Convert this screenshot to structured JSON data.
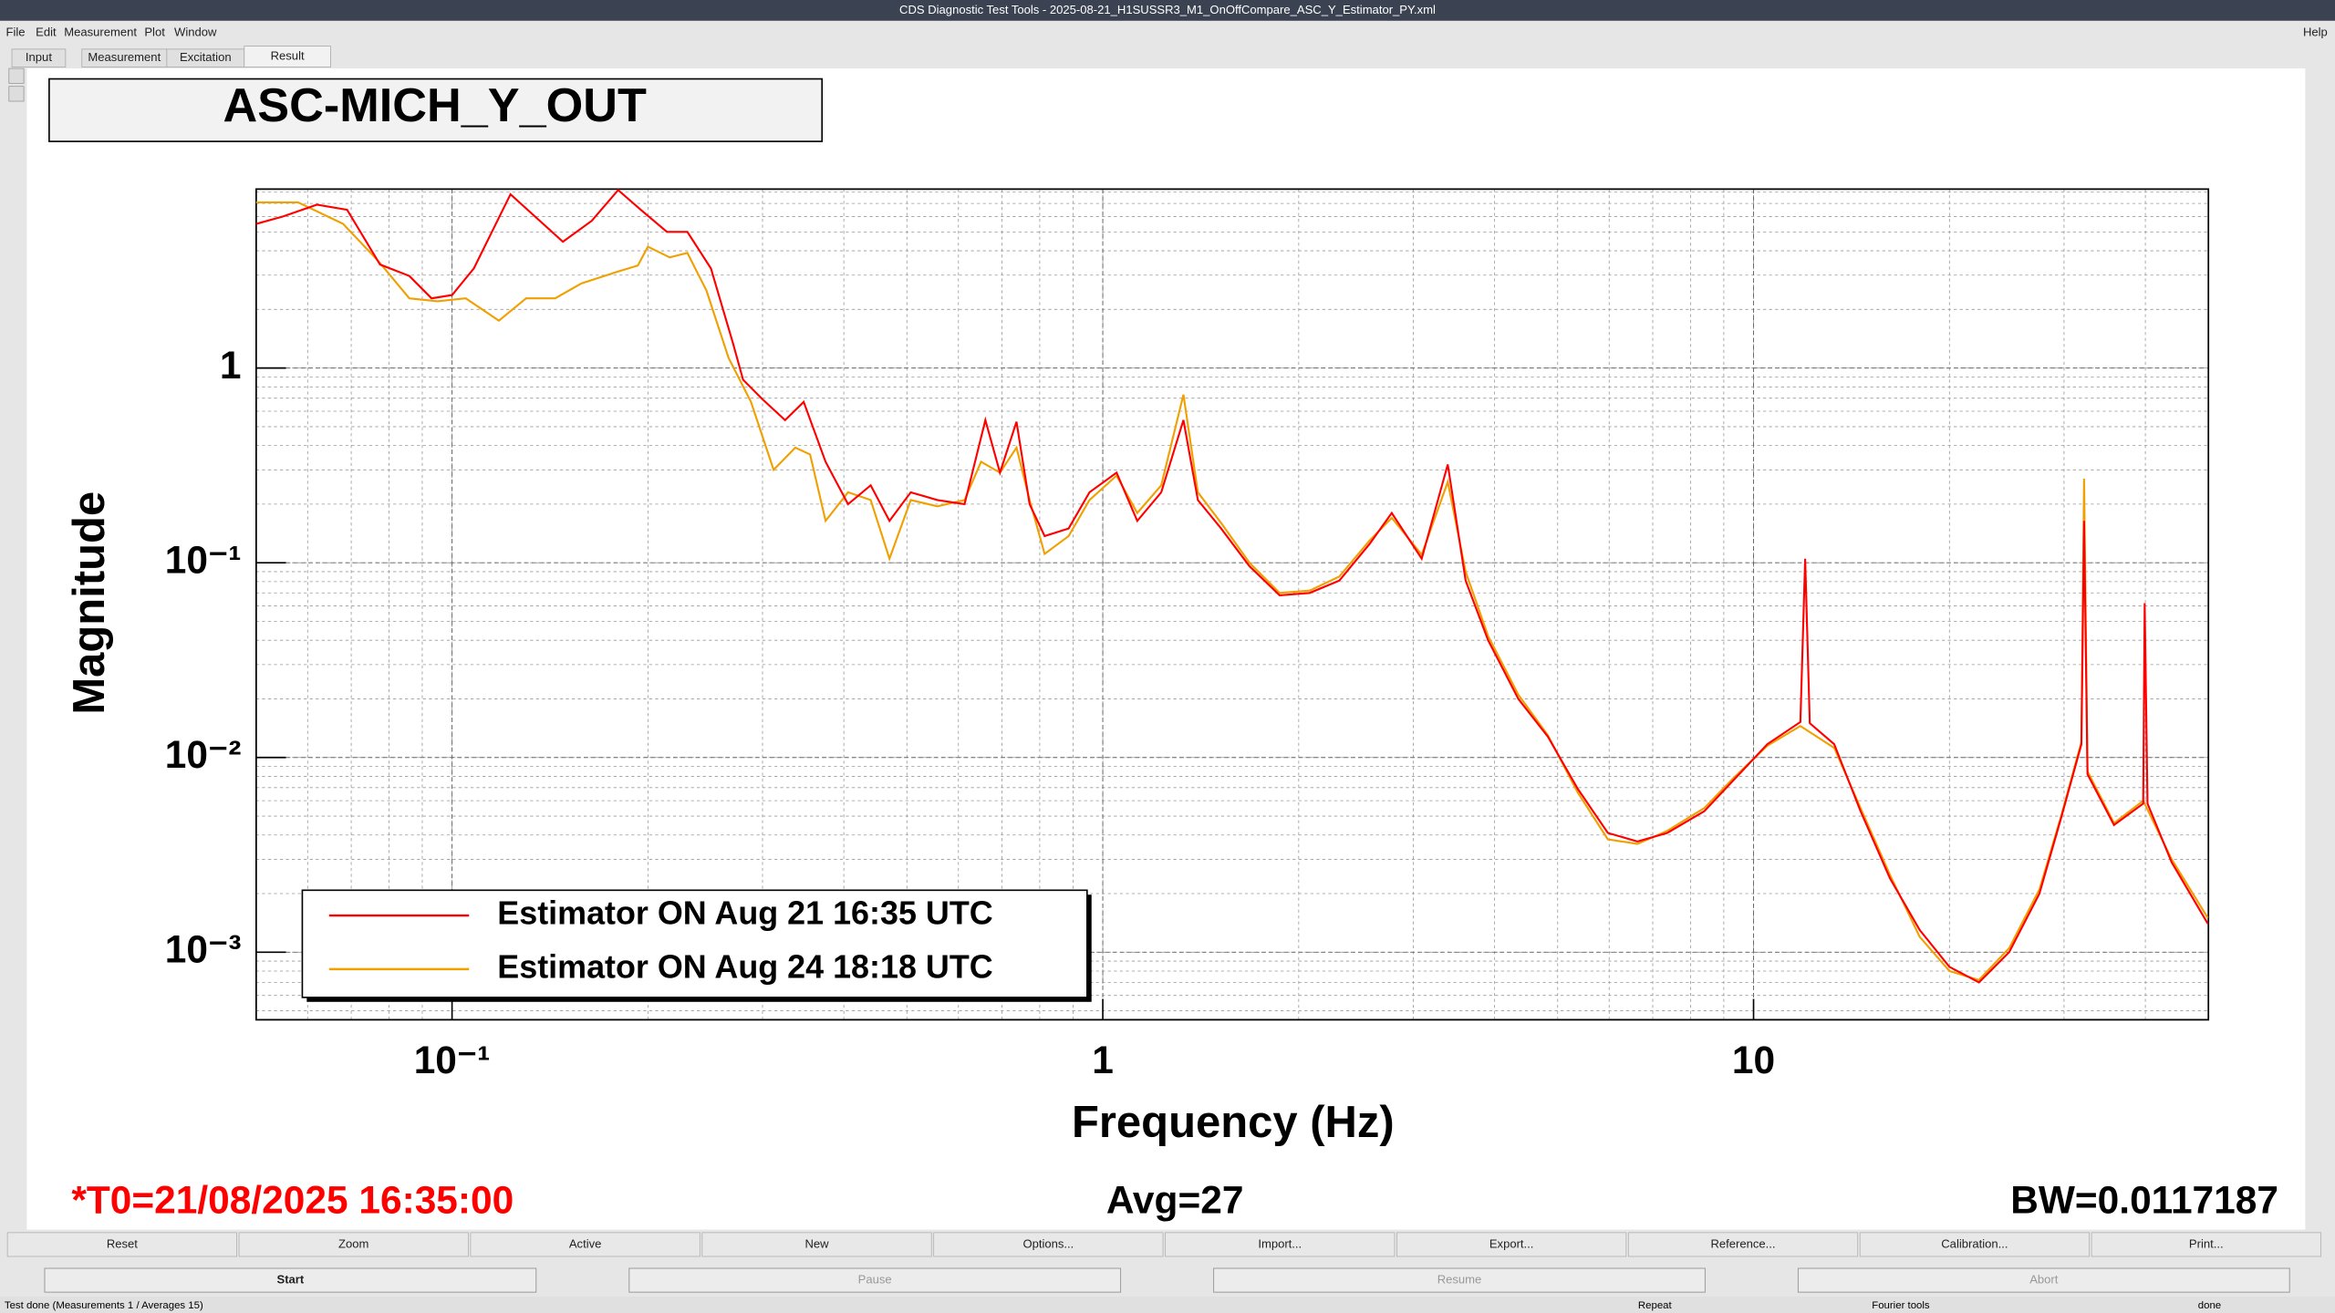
{
  "window": {
    "title": "CDS Diagnostic Test Tools - 2025-08-21_H1SUSSR3_M1_OnOffCompare_ASC_Y_Estimator_PY.xml",
    "menu": [
      "File",
      "Edit",
      "Measurement",
      "Plot",
      "Window"
    ],
    "help": "Help",
    "tabs": [
      "Input",
      "Measurement",
      "Excitation",
      "Result"
    ],
    "buttons": [
      "Reset",
      "Zoom",
      "Active",
      "New",
      "Options...",
      "Import...",
      "Export...",
      "Reference...",
      "Calibration...",
      "Print..."
    ],
    "controls": [
      "Start",
      "Pause",
      "Resume",
      "Abort"
    ],
    "status": [
      "Test done (Measurements 1 / Averages 15)",
      "Repeat",
      "Fourier tools",
      "done"
    ]
  },
  "chart_data": {
    "type": "line",
    "title": "ASC-MICH_Y_OUT",
    "x_label": "Frequency (Hz)",
    "y_label": "Magnitude",
    "xlog": true,
    "ylog": true,
    "grid": true,
    "minor_grid": true,
    "legend": "bottom left",
    "xlim": [
      0.05,
      50
    ],
    "ylim": [
      0.00045,
      8.3
    ],
    "xticks": [
      {
        "value": 0.1,
        "label": "10⁻¹"
      },
      1,
      10
    ],
    "yticks": [
      {
        "value": 0.001,
        "label": "10⁻³"
      },
      {
        "value": 0.01,
        "label": "10⁻²"
      },
      {
        "value": 0.1,
        "label": "10⁻¹"
      },
      1
    ],
    "series": [
      {
        "name": "Estimator ON Aug 21 16:35 UTC",
        "color": "#ff0000",
        "x": [
          0.05,
          0.055,
          0.062,
          0.069,
          0.0775,
          0.086,
          0.093,
          0.1,
          0.108,
          0.123,
          0.148,
          0.164,
          0.18,
          0.195,
          0.214,
          0.23,
          0.25,
          0.27,
          0.28,
          0.3,
          0.325,
          0.347,
          0.375,
          0.406,
          0.44,
          0.47,
          0.507,
          0.557,
          0.613,
          0.66,
          0.695,
          0.737,
          0.772,
          0.814,
          0.886,
          0.954,
          1.05,
          1.13,
          1.23,
          1.33,
          1.4,
          1.52,
          1.68,
          1.87,
          2.08,
          2.31,
          2.57,
          2.78,
          3.09,
          3.39,
          3.61,
          3.91,
          4.35,
          4.83,
          5.37,
          5.97,
          6.63,
          7.37,
          8.4,
          9.3,
          10.5,
          11.8,
          12.0,
          12.2,
          13.3,
          14.6,
          16.2,
          18.0,
          20.0,
          22.2,
          24.7,
          27.5,
          29.7,
          31.9,
          32.2,
          32.6,
          35.8,
          39.7,
          39.9,
          40.3,
          43.9,
          49.9
        ],
        "values": [
          5.5,
          6.0,
          6.9,
          6.5,
          3.4,
          2.97,
          2.28,
          2.37,
          3.25,
          7.8,
          4.45,
          5.7,
          8.2,
          6.5,
          5.0,
          5.0,
          3.25,
          1.35,
          0.87,
          0.69,
          0.54,
          0.67,
          0.33,
          0.2,
          0.25,
          0.164,
          0.23,
          0.21,
          0.2,
          0.54,
          0.29,
          0.53,
          0.2,
          0.137,
          0.15,
          0.23,
          0.29,
          0.164,
          0.23,
          0.54,
          0.21,
          0.15,
          0.096,
          0.068,
          0.07,
          0.081,
          0.125,
          0.18,
          0.105,
          0.32,
          0.081,
          0.04,
          0.02,
          0.0128,
          0.0069,
          0.0041,
          0.0037,
          0.0041,
          0.0053,
          0.0076,
          0.0117,
          0.0152,
          0.105,
          0.015,
          0.0117,
          0.0053,
          0.0024,
          0.0013,
          0.00084,
          0.0007,
          0.001,
          0.002,
          0.0049,
          0.0117,
          0.164,
          0.0082,
          0.0045,
          0.0058,
          0.062,
          0.0058,
          0.0029,
          0.0014
        ]
      },
      {
        "name": "Estimator ON Aug 24 18:18 UTC",
        "color": "#f0a000",
        "x": [
          0.05,
          0.058,
          0.068,
          0.077,
          0.086,
          0.095,
          0.105,
          0.118,
          0.13,
          0.144,
          0.158,
          0.18,
          0.193,
          0.2,
          0.216,
          0.23,
          0.246,
          0.266,
          0.288,
          0.312,
          0.337,
          0.355,
          0.375,
          0.406,
          0.44,
          0.47,
          0.507,
          0.557,
          0.613,
          0.65,
          0.695,
          0.737,
          0.772,
          0.814,
          0.886,
          0.954,
          1.05,
          1.13,
          1.23,
          1.33,
          1.4,
          1.52,
          1.68,
          1.87,
          2.08,
          2.31,
          2.57,
          2.78,
          3.09,
          3.39,
          3.61,
          3.91,
          4.35,
          4.83,
          5.37,
          5.97,
          6.63,
          7.37,
          8.4,
          9.3,
          10.5,
          11.8,
          13.3,
          14.6,
          16.2,
          18.0,
          20.0,
          22.2,
          24.7,
          27.5,
          29.7,
          31.9,
          32.2,
          32.6,
          35.8,
          39.7,
          43.9,
          49.9
        ],
        "values": [
          7.1,
          7.1,
          5.5,
          3.55,
          2.28,
          2.2,
          2.28,
          1.75,
          2.28,
          2.28,
          2.72,
          3.13,
          3.36,
          4.2,
          3.7,
          3.9,
          2.5,
          1.13,
          0.67,
          0.3,
          0.39,
          0.36,
          0.164,
          0.23,
          0.21,
          0.105,
          0.21,
          0.195,
          0.21,
          0.33,
          0.29,
          0.39,
          0.21,
          0.111,
          0.137,
          0.21,
          0.28,
          0.18,
          0.25,
          0.73,
          0.23,
          0.16,
          0.1,
          0.07,
          0.072,
          0.085,
          0.13,
          0.17,
          0.11,
          0.26,
          0.09,
          0.042,
          0.021,
          0.013,
          0.0066,
          0.0038,
          0.0036,
          0.0042,
          0.0055,
          0.0078,
          0.0115,
          0.0145,
          0.0112,
          0.0055,
          0.0025,
          0.0012,
          0.0008,
          0.00072,
          0.00105,
          0.0021,
          0.005,
          0.012,
          0.27,
          0.0085,
          0.0046,
          0.006,
          0.003,
          0.0015
        ]
      }
    ],
    "t0": "*T0=21/08/2025 16:35:00",
    "avg": "Avg=27",
    "bw": "BW=0.0117187"
  }
}
